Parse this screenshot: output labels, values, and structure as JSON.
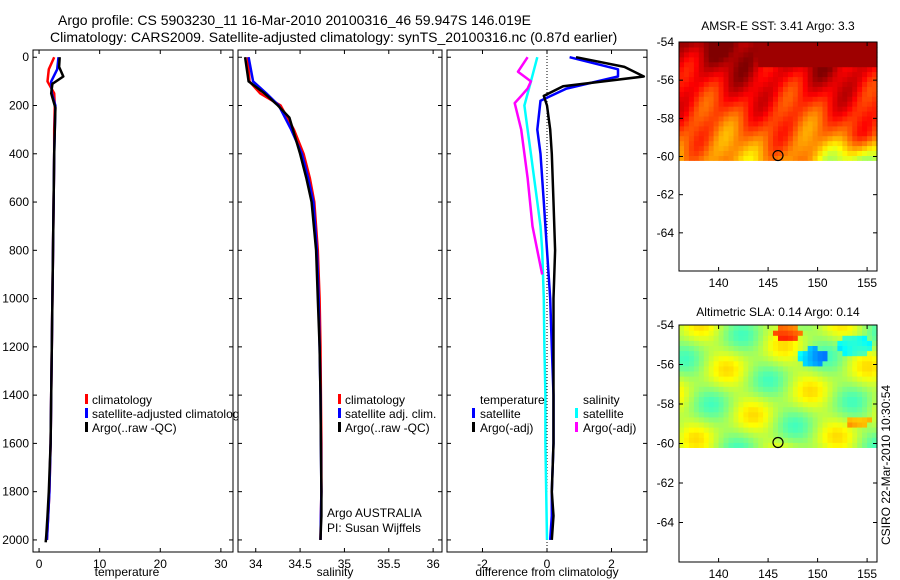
{
  "figure": {
    "title_line1": "Argo profile: CS 5903230_11 16-Mar-2010 20100316_46 59.947S 146.019E",
    "title_line2": "Climatology: CARS2009. Satellite-adjusted climatology: synTS_20100316.nc (0.87d earlier)",
    "credit": "CSIRO 22-Mar-2010 10:30:54",
    "colors": {
      "climatology": "#ff0000",
      "satellite": "#0000ff",
      "argo": "#000000",
      "sal_satellite": "#00ffff",
      "sal_argo": "#ff00ff"
    }
  },
  "chart_data": [
    {
      "id": "temperature",
      "type": "line",
      "xlabel": "temperature",
      "xlim": [
        -1,
        32
      ],
      "ylim": [
        2050,
        -30
      ],
      "xticks": [
        0,
        10,
        20,
        30
      ],
      "yticks": [
        0,
        200,
        400,
        600,
        800,
        1000,
        1200,
        1400,
        1600,
        1800,
        2000
      ],
      "legend": [
        "climatology",
        "satellite-adjusted climatolog",
        "Argo(..raw -QC)"
      ],
      "series": [
        {
          "name": "climatology",
          "color": "#ff0000",
          "x": [
            2.5,
            1.6,
            1.4,
            2.5,
            2.6,
            2.5,
            2.5,
            2.4,
            2.3,
            2.2,
            2.1,
            2.0,
            1.9,
            1.7,
            1.5,
            1.3
          ],
          "y": [
            0,
            50,
            100,
            150,
            200,
            300,
            400,
            600,
            800,
            1000,
            1200,
            1400,
            1600,
            1800,
            1900,
            2000
          ]
        },
        {
          "name": "satellite-adjusted climatology",
          "color": "#0000ff",
          "x": [
            3.2,
            3.0,
            2.0,
            2.1,
            2.7,
            2.6,
            2.5,
            2.4,
            2.3,
            2.2,
            2.1,
            2.0,
            1.9,
            1.7,
            1.5,
            1.3
          ],
          "y": [
            0,
            50,
            100,
            150,
            200,
            300,
            400,
            600,
            800,
            1000,
            1200,
            1400,
            1600,
            1800,
            1900,
            2000
          ]
        },
        {
          "name": "Argo(..raw -QC)",
          "color": "#000000",
          "x": [
            3.4,
            3.3,
            4.0,
            2.2,
            2.0,
            2.7,
            2.6,
            2.5,
            2.4,
            2.3,
            2.2,
            2.1,
            2.0,
            1.9,
            1.6,
            1.4,
            1.2,
            1.1
          ],
          "y": [
            0,
            40,
            80,
            110,
            150,
            210,
            300,
            400,
            600,
            800,
            1000,
            1200,
            1400,
            1600,
            1800,
            1900,
            1980,
            2010
          ]
        }
      ]
    },
    {
      "id": "salinity",
      "type": "line",
      "xlabel": "salinity",
      "xlim": [
        33.8,
        36.1
      ],
      "ylim": [
        2050,
        -30
      ],
      "xticks": [
        34,
        34.5,
        35,
        35.5,
        36
      ],
      "legend": [
        "climatology",
        "satellite adj. clim.",
        "Argo(..raw -QC)"
      ],
      "annotation": [
        "Argo AUSTRALIA",
        "PI: Susan Wijffels"
      ],
      "series": [
        {
          "name": "climatology",
          "color": "#ff0000",
          "x": [
            33.91,
            33.93,
            34.05,
            34.28,
            34.43,
            34.54,
            34.61,
            34.66,
            34.7,
            34.72,
            34.73,
            34.735,
            34.74,
            34.74,
            34.735,
            34.73
          ],
          "y": [
            0,
            100,
            150,
            200,
            300,
            400,
            500,
            600,
            800,
            1000,
            1200,
            1400,
            1600,
            1800,
            1900,
            2000
          ]
        },
        {
          "name": "satellite adj. clim.",
          "color": "#0000ff",
          "x": [
            33.92,
            33.97,
            34.12,
            34.26,
            34.4,
            34.52,
            34.59,
            34.65,
            34.69,
            34.71,
            34.72,
            34.73,
            34.735,
            34.74,
            34.735,
            34.73
          ],
          "y": [
            0,
            100,
            150,
            200,
            300,
            400,
            500,
            600,
            800,
            1000,
            1200,
            1400,
            1600,
            1800,
            1900,
            2000
          ]
        },
        {
          "name": "Argo(..raw -QC)",
          "color": "#000000",
          "x": [
            33.88,
            33.92,
            34.1,
            34.25,
            34.38,
            34.5,
            34.57,
            34.63,
            34.68,
            34.7,
            34.72,
            34.73,
            34.735,
            34.74,
            34.74,
            34.735,
            34.73
          ],
          "y": [
            0,
            100,
            150,
            200,
            250,
            400,
            500,
            600,
            800,
            1000,
            1200,
            1400,
            1600,
            1800,
            1900,
            1950,
            2000
          ]
        }
      ]
    },
    {
      "id": "difference",
      "type": "line",
      "xlabel": "difference from climatology",
      "xlim": [
        -3.1,
        3.1
      ],
      "ylim": [
        2050,
        -30
      ],
      "xticks": [
        -2,
        0,
        2
      ],
      "legend_groups": [
        {
          "header": "temperature",
          "items": [
            "satellite",
            "Argo(-adj)"
          ]
        },
        {
          "header": "salinity",
          "items": [
            "satellite",
            "Argo(-adj)"
          ]
        }
      ],
      "series": [
        {
          "name": "temperature satellite",
          "color": "#0000ff",
          "x": [
            0.7,
            2.2,
            2.2,
            0.6,
            -0.2,
            -0.3,
            -0.2,
            -0.1,
            0.0,
            0.1,
            0.15,
            0.2,
            0.2,
            0.15,
            0.15,
            0.1
          ],
          "y": [
            0,
            50,
            80,
            130,
            180,
            300,
            400,
            600,
            800,
            1000,
            1200,
            1400,
            1600,
            1800,
            1900,
            2000
          ]
        },
        {
          "name": "temperature Argo(-adj)",
          "color": "#000000",
          "x": [
            0.9,
            2.4,
            3.0,
            0.5,
            -0.1,
            0.0,
            0.1,
            0.15,
            0.2,
            0.25,
            0.2,
            0.2,
            0.2,
            0.2,
            0.15,
            0.2,
            0.15
          ],
          "y": [
            0,
            40,
            80,
            120,
            160,
            200,
            300,
            400,
            600,
            800,
            1000,
            1200,
            1400,
            1600,
            1800,
            1900,
            2000
          ]
        },
        {
          "name": "salinity satellite",
          "color": "#00ffff",
          "x": [
            -0.3,
            -0.5,
            -0.7,
            -0.6,
            -0.5,
            -0.4,
            -0.3,
            -0.2,
            -0.15,
            -0.1,
            -0.08,
            -0.05,
            -0.05,
            0.0
          ],
          "y": [
            0,
            100,
            200,
            300,
            400,
            500,
            600,
            700,
            800,
            1000,
            1200,
            1400,
            1600,
            2000
          ]
        },
        {
          "name": "salinity Argo(-adj)",
          "color": "#ff00ff",
          "x": [
            -0.6,
            -0.9,
            -0.5,
            -0.6,
            -0.8,
            -1.0,
            -0.8,
            -0.6,
            -0.45,
            -0.3,
            -0.15
          ],
          "y": [
            0,
            60,
            100,
            130,
            160,
            190,
            300,
            500,
            700,
            800,
            900
          ]
        }
      ]
    },
    {
      "id": "sst_map",
      "type": "heatmap",
      "title": "AMSR-E SST: 3.41  Argo: 3.3",
      "xlim": [
        136,
        156
      ],
      "ylim": [
        -66,
        -54
      ],
      "xticks": [
        140,
        145,
        150,
        155
      ],
      "yticks": [
        -54,
        -56,
        -58,
        -60,
        -62,
        -64
      ],
      "data_lat_range": [
        -60.2,
        -54
      ],
      "marker": {
        "lon": 146.0,
        "lat": -59.95
      }
    },
    {
      "id": "sla_map",
      "type": "heatmap",
      "title": "Altimetric SLA: 0.14  Argo: 0.14",
      "xlim": [
        136,
        156
      ],
      "ylim": [
        -66,
        -54
      ],
      "xticks": [
        140,
        145,
        150,
        155
      ],
      "yticks": [
        -54,
        -56,
        -58,
        -60,
        -62,
        -64
      ],
      "data_lat_range": [
        -60.2,
        -54
      ],
      "marker": {
        "lon": 146.0,
        "lat": -59.95
      }
    }
  ]
}
